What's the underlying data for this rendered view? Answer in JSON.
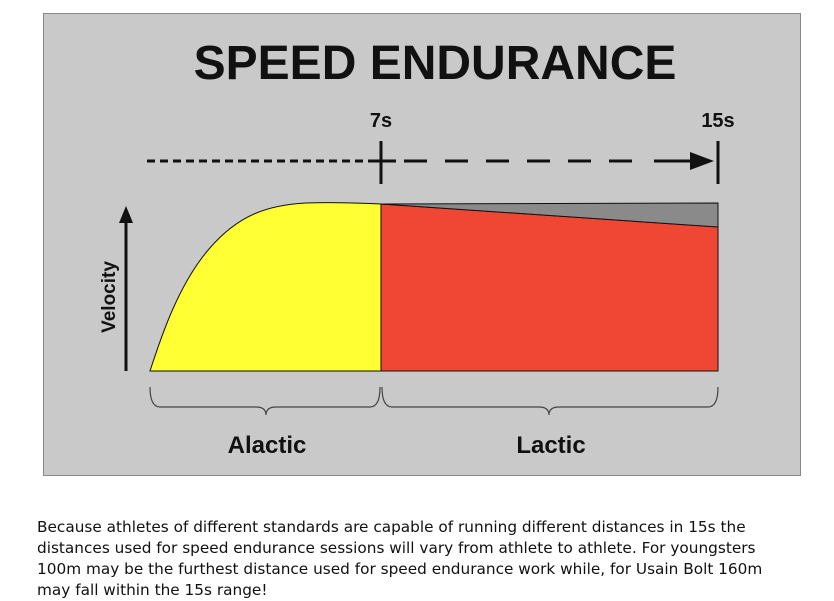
{
  "diagram": {
    "title": "SPEED ENDURANCE",
    "marker_7s": "7s",
    "marker_15s": "15s",
    "axis_label": "Velocity",
    "phase_alactic": "Alactic",
    "phase_lactic": "Lactic",
    "colors": {
      "background": "#c9c9c9",
      "alactic_fill": "#ffff33",
      "lactic_fill": "#ef4733",
      "velocity_drop_fill": "#8a8a8a",
      "line": "#111111"
    }
  },
  "caption": {
    "text": "Because athletes of different standards are capable of running different distances in 15s the distances used for speed endurance sessions will vary from athlete to athlete. For youngsters 100m may be the furthest distance used for speed endurance work while, for Usain Bolt 160m may fall within the 15s range!"
  }
}
